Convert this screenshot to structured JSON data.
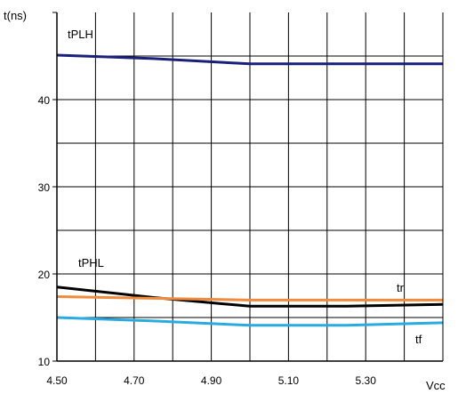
{
  "chart_data": {
    "type": "line",
    "title": "",
    "xlabel": "Vcc",
    "ylabel": "t(ns)",
    "xlim": [
      4.5,
      5.5
    ],
    "ylim": [
      10,
      50
    ],
    "grid": true,
    "x_ticks": [
      4.5,
      4.7,
      4.9,
      5.1,
      5.3
    ],
    "x_tick_labels": [
      "4.50",
      "4.70",
      "4.90",
      "5.10",
      "5.30"
    ],
    "y_ticks": [
      10,
      20,
      30,
      40
    ],
    "y_tick_labels": [
      "10",
      "20",
      "30",
      "40"
    ],
    "series": [
      {
        "name": "tPLH",
        "color": "#1a1f7a",
        "x": [
          4.5,
          4.75,
          5.0,
          5.25,
          5.5
        ],
        "y": [
          45.1,
          44.7,
          44.1,
          44.1,
          44.1
        ]
      },
      {
        "name": "tPHL",
        "color": "#000000",
        "x": [
          4.5,
          4.75,
          5.0,
          5.25,
          5.5
        ],
        "y": [
          18.5,
          17.3,
          16.3,
          16.3,
          16.5
        ]
      },
      {
        "name": "tr",
        "color": "#f08a3c",
        "x": [
          4.5,
          4.75,
          5.0,
          5.25,
          5.5
        ],
        "y": [
          17.4,
          17.2,
          17.0,
          17.0,
          17.0
        ]
      },
      {
        "name": "tf",
        "color": "#29abe2",
        "x": [
          4.5,
          4.75,
          5.0,
          5.25,
          5.5
        ],
        "y": [
          15.0,
          14.6,
          14.1,
          14.1,
          14.4
        ]
      }
    ]
  }
}
